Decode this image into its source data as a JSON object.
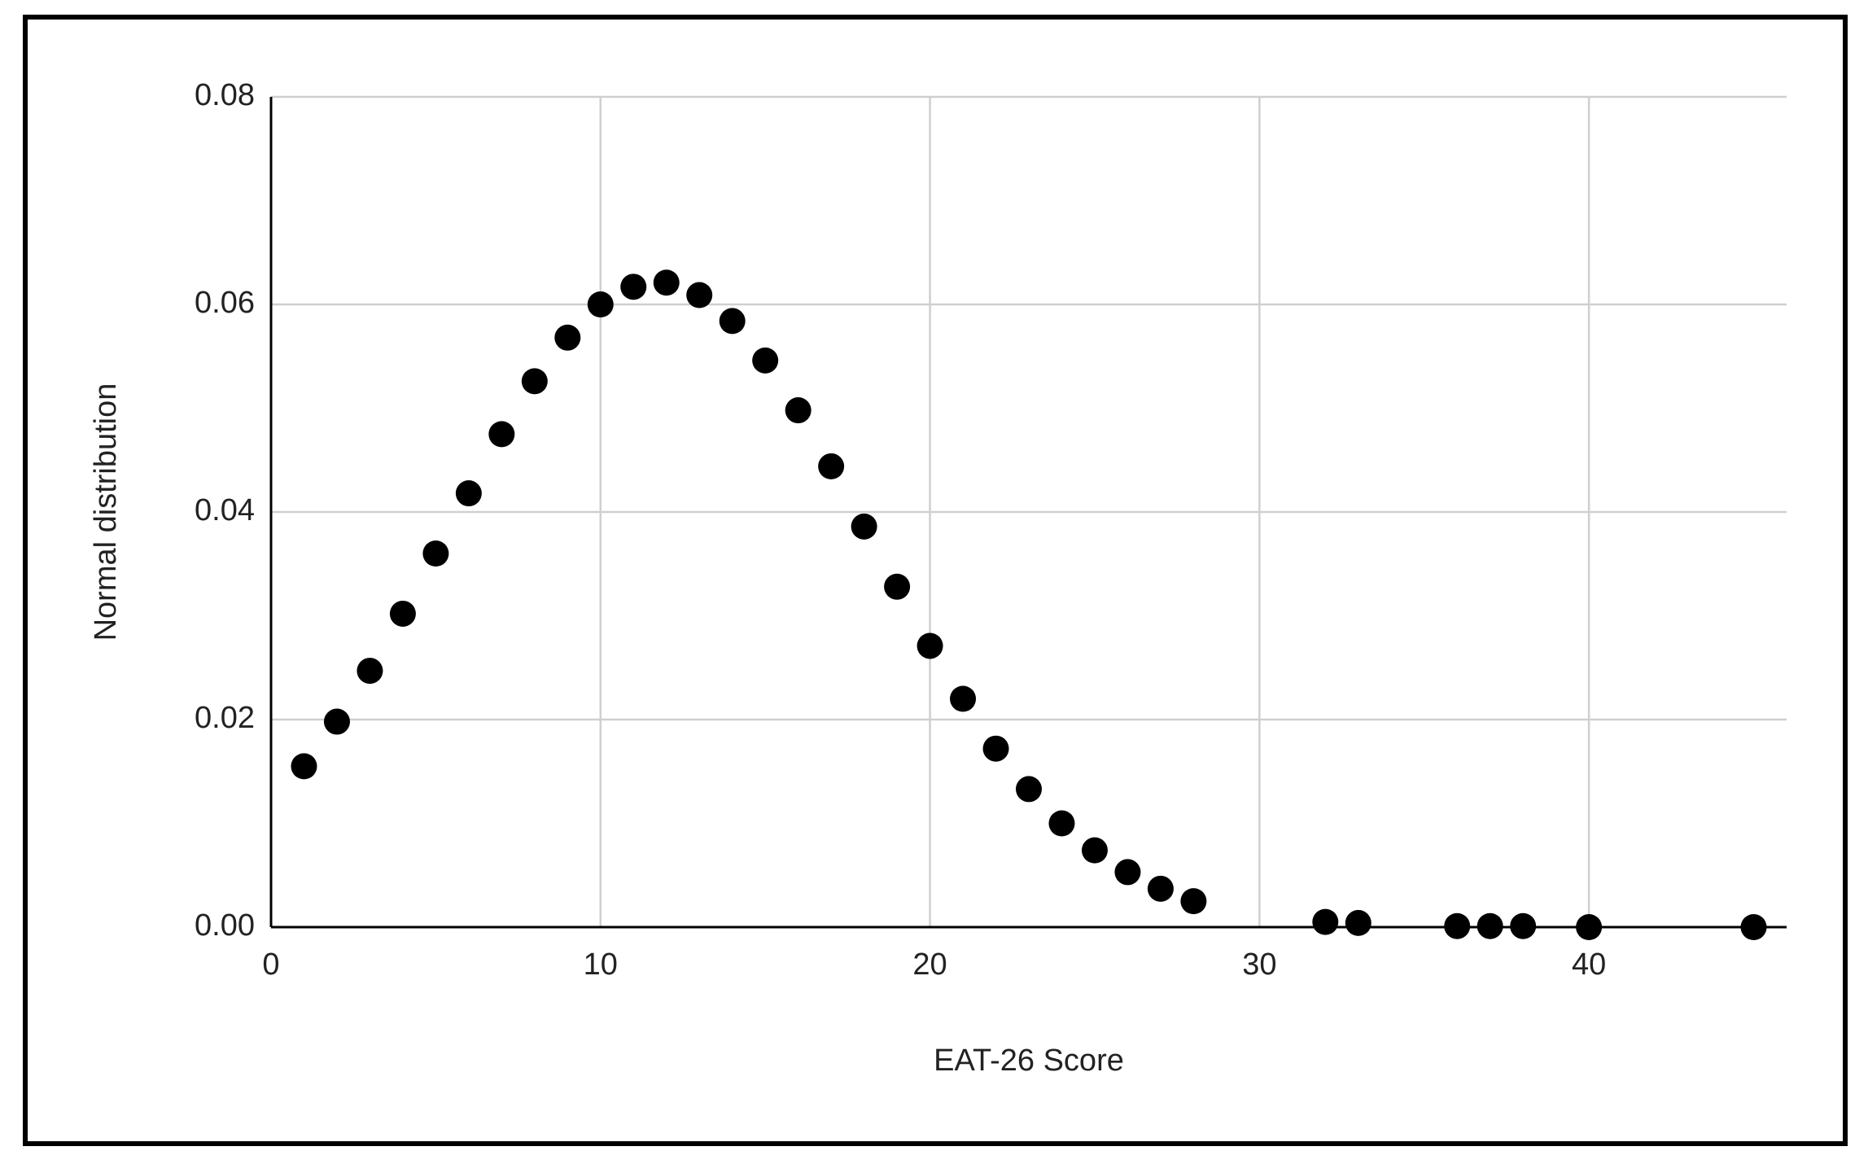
{
  "chart_data": {
    "type": "scatter",
    "x_label": "EAT-26 Score",
    "y_label": "Normal distribution",
    "x": [
      1,
      2,
      3,
      4,
      5,
      6,
      7,
      8,
      9,
      10,
      11,
      12,
      13,
      14,
      15,
      16,
      17,
      18,
      19,
      20,
      21,
      22,
      23,
      24,
      25,
      26,
      27,
      28,
      32,
      33,
      36,
      37,
      38,
      40,
      45
    ],
    "series": [
      {
        "color": "#000000",
        "values": [
          0.0155,
          0.0198,
          0.0247,
          0.0302,
          0.036,
          0.0418,
          0.0475,
          0.0526,
          0.0568,
          0.06,
          0.0617,
          0.0621,
          0.0609,
          0.0584,
          0.0546,
          0.0498,
          0.0444,
          0.0386,
          0.0328,
          0.0271,
          0.022,
          0.0172,
          0.0133,
          0.01,
          0.0074,
          0.0053,
          0.0037,
          0.0025,
          0.0005,
          0.0004,
          0.0001,
          0.0001,
          0.0001,
          0.0,
          0.0
        ]
      }
    ],
    "xlim": [
      0,
      46
    ],
    "xticks": [
      0,
      10,
      20,
      30,
      40
    ],
    "ylim": [
      0,
      0.08
    ],
    "yticks": [
      {
        "value": 0,
        "label": "0.00"
      },
      {
        "value": 0.02,
        "label": "0.02"
      },
      {
        "value": 0.04,
        "label": "0.04"
      },
      {
        "value": 0.06,
        "label": "0.06"
      },
      {
        "value": 0.08,
        "label": "0.08"
      }
    ],
    "grid": true
  }
}
